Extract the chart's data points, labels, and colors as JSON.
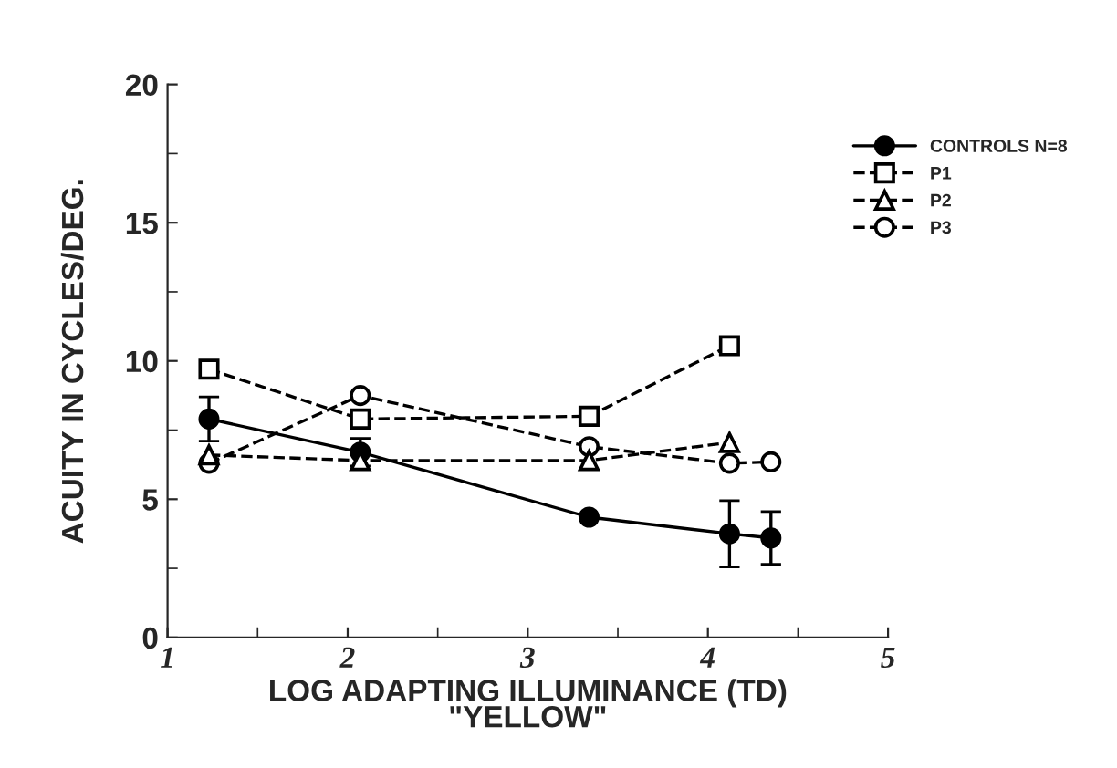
{
  "chart_data": {
    "type": "line",
    "xlabel": "LOG ADAPTING ILLUMINANCE (TD)\n\"YELLOW\"",
    "ylabel": "ACUITY IN CYCLES/DEG.",
    "xlim": [
      1,
      5
    ],
    "xticks": [
      1,
      2,
      3,
      4,
      5
    ],
    "ylim": [
      0,
      20
    ],
    "yticks": [
      0,
      5,
      10,
      15,
      20
    ],
    "grid": false,
    "legend": "top right",
    "series": [
      {
        "name": "CONTROLS N=8",
        "color": "#000000",
        "marker": "circle",
        "line_style": "solid",
        "x": [
          1.23,
          2.07,
          3.34,
          4.12,
          4.35
        ],
        "values": [
          7.9,
          6.7,
          4.35,
          3.75,
          3.6
        ],
        "errors": [
          0.8,
          0.5,
          null,
          1.2,
          0.95
        ]
      },
      {
        "name": "P1",
        "color": "#000000",
        "marker": "square",
        "line_style": "dashed",
        "x": [
          1.23,
          2.07,
          3.34,
          4.12
        ],
        "values": [
          9.7,
          7.9,
          8.0,
          10.55
        ]
      },
      {
        "name": "P2",
        "color": "#000000",
        "marker": "triangle",
        "line_style": "dashed",
        "x": [
          1.23,
          2.07,
          3.34,
          4.12
        ],
        "values": [
          6.6,
          6.4,
          6.4,
          7.05
        ]
      },
      {
        "name": "P3",
        "color": "#000000",
        "marker": "circle",
        "line_style": "dashed",
        "x": [
          1.23,
          2.07,
          3.34,
          4.12,
          4.35
        ],
        "values": [
          6.3,
          8.75,
          6.9,
          6.3,
          6.35
        ]
      }
    ]
  }
}
